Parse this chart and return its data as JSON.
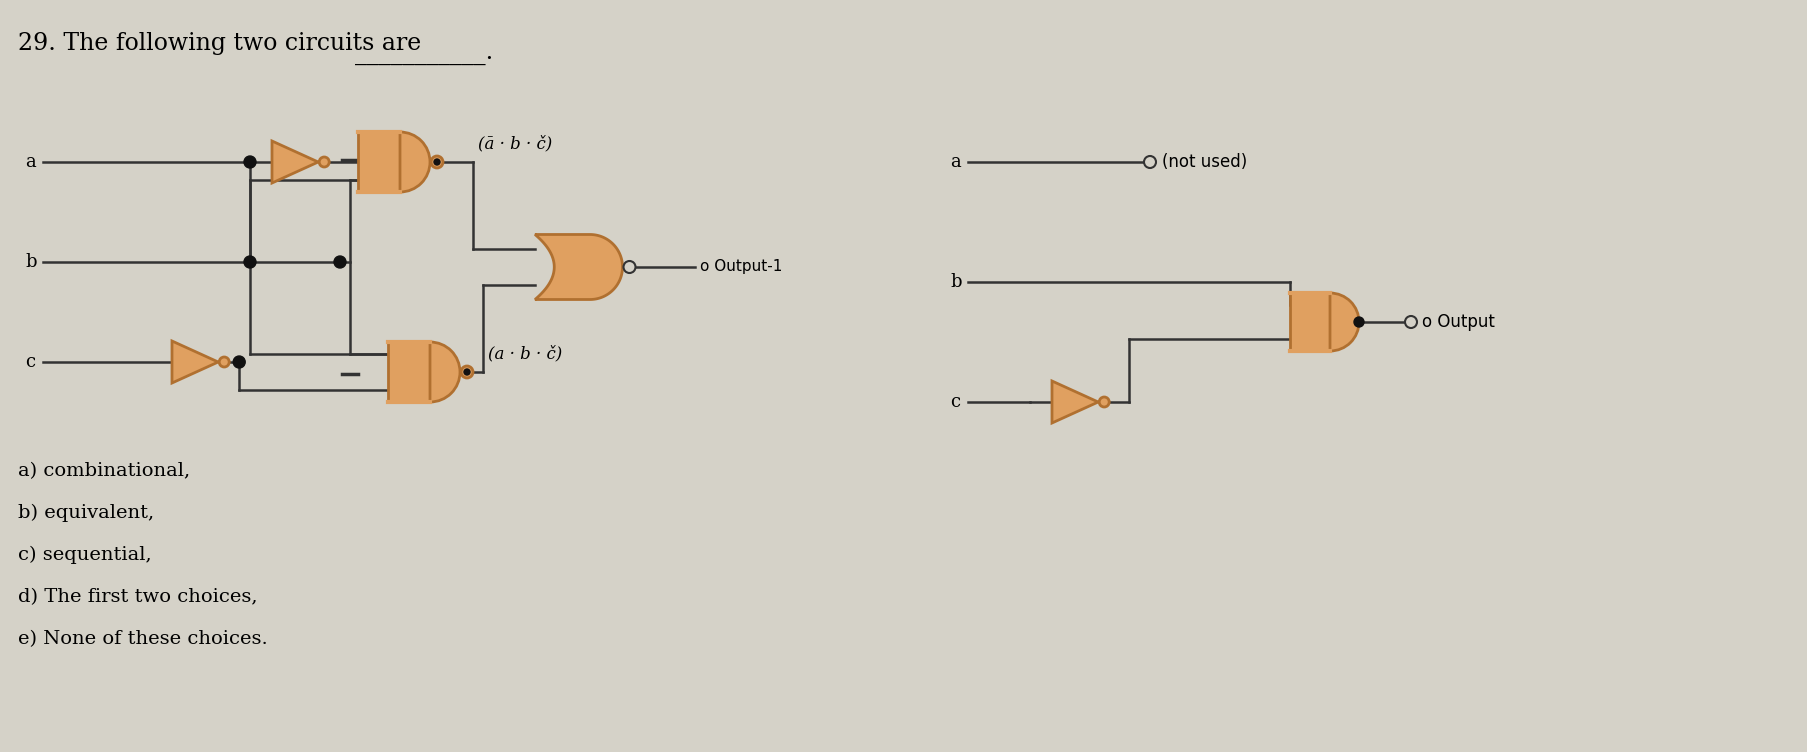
{
  "bg_color": "#d5d2c8",
  "gate_color": "#e0a060",
  "gate_edge_color": "#b07030",
  "line_color": "#333333",
  "dot_color": "#111111",
  "title_part1": "29. The following two circuits are",
  "underline": "___________",
  "title_dot": ".",
  "choices": [
    "a) combinational,",
    "b) equivalent,",
    "c) sequential,",
    "d) The first two choices,",
    "e) None of these choices."
  ],
  "label_top": "(ā · b · č)",
  "label_bot": "(a · b · č)",
  "output1_label": "o Output-1",
  "output2_label": "o Output",
  "not_used_label": "(not used)"
}
